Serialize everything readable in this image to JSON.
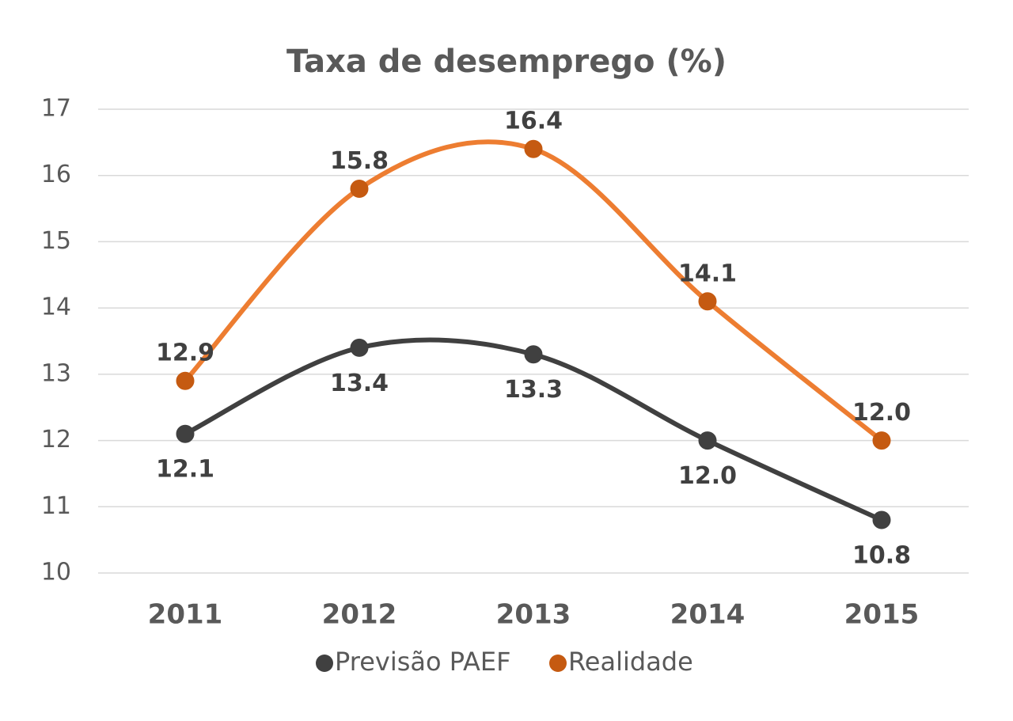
{
  "chart_data": {
    "type": "line",
    "title": "Taxa de desemprego (%)",
    "categories": [
      "2011",
      "2012",
      "2013",
      "2014",
      "2015"
    ],
    "series": [
      {
        "name": "Previsão PAEF",
        "color": "#404040",
        "marker_color": "#404040",
        "label_position": "below",
        "values": [
          12.1,
          13.4,
          13.3,
          12,
          10.8
        ],
        "value_labels": [
          "12.1",
          "13.4",
          "13.3",
          "12.0",
          "10.8"
        ]
      },
      {
        "name": "Realidade",
        "color": "#ED7D31",
        "marker_color": "#C55A11",
        "label_position": "above",
        "values": [
          12.9,
          15.8,
          16.4,
          14.1,
          12
        ],
        "value_labels": [
          "12.9",
          "15.8",
          "16.4",
          "14.1",
          "12.0"
        ]
      }
    ],
    "ylim": [
      10,
      17
    ],
    "yticks": [
      10,
      11,
      12,
      13,
      14,
      15,
      16,
      17
    ],
    "grid": true,
    "smooth": true,
    "legend": "bottom"
  }
}
